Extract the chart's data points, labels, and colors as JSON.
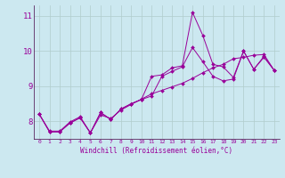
{
  "xlabel": "Windchill (Refroidissement éolien,°C)",
  "x_values": [
    0,
    1,
    2,
    3,
    4,
    5,
    6,
    7,
    8,
    9,
    10,
    11,
    12,
    13,
    14,
    15,
    16,
    17,
    18,
    19,
    20,
    21,
    22,
    23
  ],
  "line1": [
    8.2,
    7.7,
    7.7,
    7.95,
    8.1,
    7.67,
    8.25,
    8.05,
    8.35,
    8.5,
    8.62,
    8.72,
    9.28,
    9.42,
    9.55,
    10.1,
    9.7,
    9.28,
    9.15,
    9.2,
    10.0,
    9.48,
    9.82,
    9.45
  ],
  "line2": [
    8.2,
    7.7,
    7.7,
    7.95,
    8.1,
    7.67,
    8.25,
    8.05,
    8.35,
    8.5,
    8.62,
    9.28,
    9.32,
    9.52,
    9.58,
    11.1,
    10.45,
    9.62,
    9.55,
    9.25,
    10.0,
    9.48,
    9.85,
    9.45
  ],
  "line3": [
    8.2,
    7.72,
    7.72,
    7.98,
    8.13,
    7.67,
    8.18,
    8.08,
    8.32,
    8.48,
    8.63,
    8.78,
    8.88,
    8.98,
    9.08,
    9.22,
    9.38,
    9.52,
    9.62,
    9.78,
    9.82,
    9.88,
    9.9,
    9.45
  ],
  "line_color": "#990099",
  "background_color": "#cce8f0",
  "grid_color": "#b0cccc",
  "ylim": [
    7.5,
    11.3
  ],
  "yticks": [
    8,
    9,
    10,
    11
  ],
  "xlim": [
    -0.5,
    23.5
  ]
}
